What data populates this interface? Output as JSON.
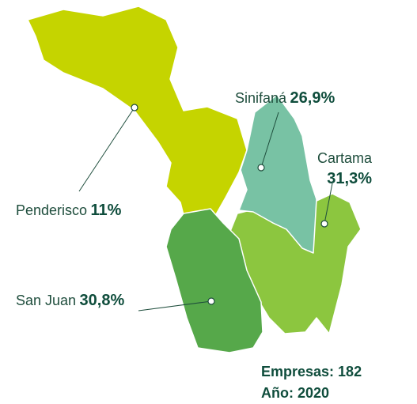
{
  "regions": [
    {
      "name": "Penderisco",
      "value": 11,
      "value_label": "11%",
      "color": "#c5d400"
    },
    {
      "name": "Cartama",
      "value": 31.3,
      "value_label": "31,3%",
      "color": "#8cc63f"
    },
    {
      "name": "Sinifaná",
      "value": 26.9,
      "value_label": "26,9%",
      "color": "#78c2a4"
    },
    {
      "name": "San Juan",
      "value": 30.8,
      "value_label": "30,8%",
      "color": "#56a84a"
    }
  ],
  "footer": {
    "lines": [
      "Empresas: 182",
      "Año: 2020"
    ]
  }
}
